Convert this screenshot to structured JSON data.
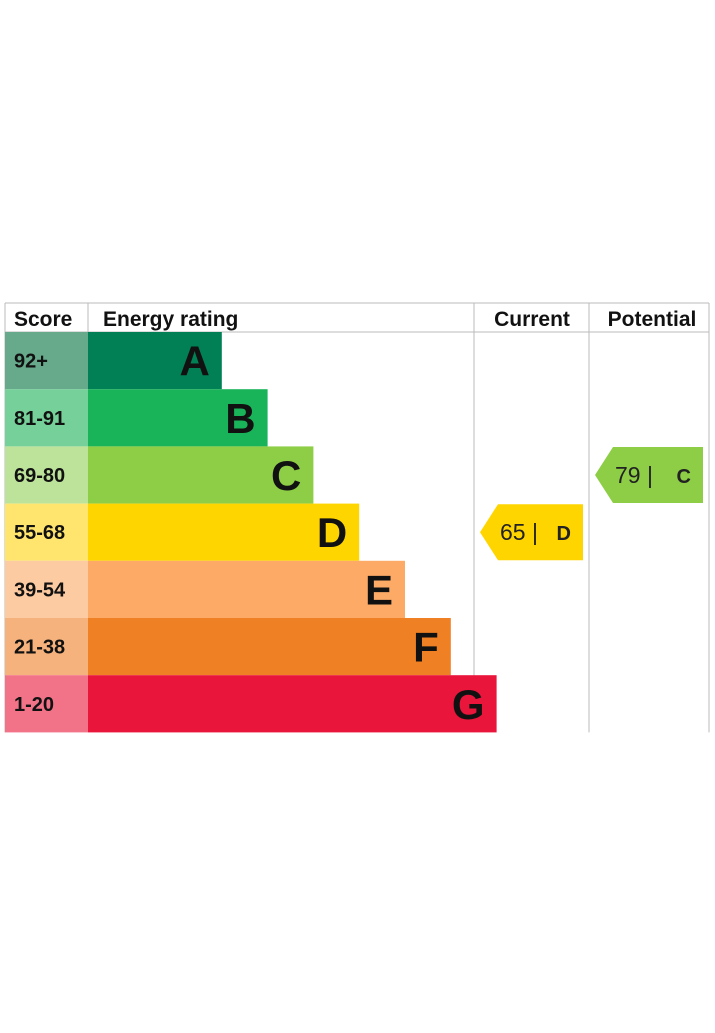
{
  "chart_data": {
    "type": "bar",
    "headers": {
      "score": "Score",
      "rating": "Energy rating",
      "current": "Current",
      "potential": "Potential"
    },
    "bands": [
      {
        "score": "92+",
        "letter": "A",
        "min": 92,
        "max": 100,
        "color": "#008054",
        "light": "#66a98b"
      },
      {
        "score": "81-91",
        "letter": "B",
        "min": 81,
        "max": 91,
        "color": "#19b459",
        "light": "#75d099"
      },
      {
        "score": "69-80",
        "letter": "C",
        "min": 69,
        "max": 80,
        "color": "#8dce46",
        "light": "#bde29a"
      },
      {
        "score": "55-68",
        "letter": "D",
        "min": 55,
        "max": 68,
        "color": "#ffd500",
        "light": "#ffe56e"
      },
      {
        "score": "39-54",
        "letter": "E",
        "min": 39,
        "max": 54,
        "color": "#fcaa65",
        "light": "#fdcba2"
      },
      {
        "score": "21-38",
        "letter": "F",
        "min": 21,
        "max": 38,
        "color": "#ef8023",
        "light": "#f5b27c"
      },
      {
        "score": "1-20",
        "letter": "G",
        "min": 1,
        "max": 20,
        "color": "#e9153b",
        "light": "#f27388"
      }
    ],
    "current": {
      "value": 65,
      "letter": "D",
      "separator": "|",
      "color": "#ffd500"
    },
    "potential": {
      "value": 79,
      "letter": "C",
      "separator": "|",
      "color": "#8dce46"
    },
    "border_color": "#bbbbbb"
  }
}
